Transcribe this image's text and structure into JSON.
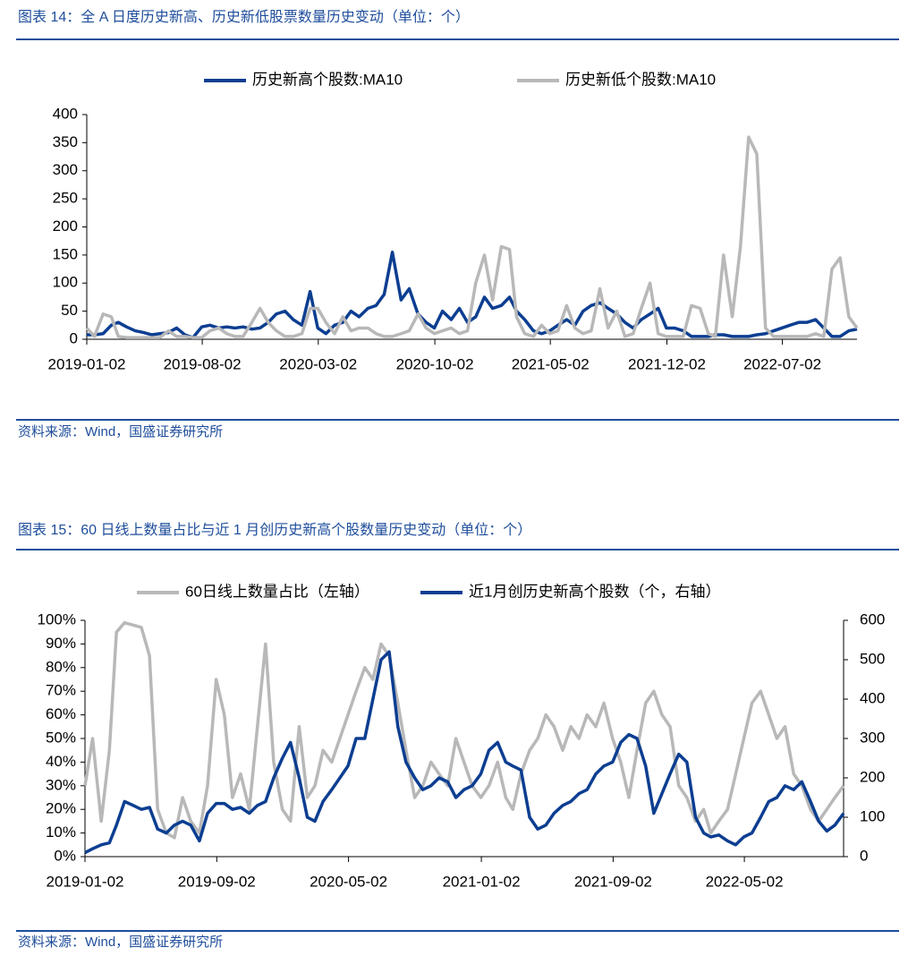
{
  "chart_data": [
    {
      "type": "line",
      "title": "图表 14：全 A 日度历史新高、历史新低股票数量历史变动（单位：个）",
      "source": "资料来源：Wind，国盛证券研究所",
      "x": [
        "2019-01-02",
        "2019-01-16",
        "2019-02-01",
        "2019-02-16",
        "2019-03-01",
        "2019-03-16",
        "2019-04-01",
        "2019-04-16",
        "2019-05-01",
        "2019-05-16",
        "2019-06-01",
        "2019-06-16",
        "2019-07-01",
        "2019-07-16",
        "2019-08-01",
        "2019-08-16",
        "2019-09-01",
        "2019-09-16",
        "2019-10-01",
        "2019-10-16",
        "2019-11-01",
        "2019-11-16",
        "2019-12-01",
        "2019-12-16",
        "2020-01-01",
        "2020-01-16",
        "2020-02-01",
        "2020-02-16",
        "2020-03-01",
        "2020-03-16",
        "2020-04-01",
        "2020-04-16",
        "2020-05-01",
        "2020-05-16",
        "2020-06-01",
        "2020-06-16",
        "2020-07-01",
        "2020-07-16",
        "2020-08-01",
        "2020-08-16",
        "2020-09-01",
        "2020-09-16",
        "2020-10-01",
        "2020-10-16",
        "2020-11-01",
        "2020-11-16",
        "2020-12-01",
        "2020-12-16",
        "2021-01-01",
        "2021-01-16",
        "2021-02-01",
        "2021-02-16",
        "2021-03-01",
        "2021-03-16",
        "2021-04-01",
        "2021-04-16",
        "2021-05-01",
        "2021-05-16",
        "2021-06-01",
        "2021-06-16",
        "2021-07-01",
        "2021-07-16",
        "2021-08-01",
        "2021-08-16",
        "2021-09-01",
        "2021-09-16",
        "2021-10-01",
        "2021-10-16",
        "2021-11-01",
        "2021-11-16",
        "2021-12-01",
        "2021-12-16",
        "2022-01-01",
        "2022-01-16",
        "2022-02-01",
        "2022-02-16",
        "2022-03-01",
        "2022-03-16",
        "2022-04-01",
        "2022-04-16",
        "2022-05-01",
        "2022-05-16",
        "2022-06-01",
        "2022-06-16",
        "2022-07-01",
        "2022-07-16",
        "2022-08-01",
        "2022-08-16",
        "2022-09-01",
        "2022-09-16",
        "2022-10-01",
        "2022-10-16",
        "2022-11-01",
        "2022-11-16"
      ],
      "xlim": [
        "2019-01-02",
        "2022-11-16"
      ],
      "xticks": [
        "2019-01-02",
        "2019-08-02",
        "2020-03-02",
        "2020-10-02",
        "2021-05-02",
        "2021-12-02",
        "2022-07-02"
      ],
      "ylim": [
        0,
        400
      ],
      "yticks": [
        0,
        50,
        100,
        150,
        200,
        250,
        300,
        350,
        400
      ],
      "legend": "top",
      "series": [
        {
          "name": "历史新高个股数:MA10",
          "color": "#0c3e91",
          "values": [
            8,
            8,
            10,
            25,
            30,
            22,
            15,
            12,
            8,
            10,
            12,
            20,
            8,
            3,
            22,
            25,
            20,
            22,
            20,
            22,
            18,
            20,
            30,
            45,
            50,
            35,
            25,
            85,
            20,
            10,
            25,
            30,
            50,
            40,
            55,
            60,
            80,
            155,
            70,
            90,
            45,
            30,
            20,
            50,
            35,
            55,
            30,
            40,
            75,
            55,
            60,
            75,
            50,
            35,
            15,
            10,
            15,
            25,
            35,
            25,
            50,
            60,
            65,
            55,
            45,
            30,
            20,
            35,
            45,
            55,
            20,
            20,
            15,
            5,
            5,
            5,
            8,
            8,
            5,
            5,
            5,
            8,
            10,
            15,
            20,
            25,
            30,
            30,
            35,
            20,
            5,
            5,
            15,
            18
          ]
        },
        {
          "name": "历史新低个股数:MA10",
          "color": "#b8b8b8",
          "values": [
            20,
            5,
            45,
            40,
            5,
            3,
            3,
            3,
            3,
            3,
            15,
            5,
            5,
            3,
            3,
            15,
            20,
            10,
            5,
            5,
            30,
            55,
            30,
            15,
            5,
            5,
            10,
            55,
            55,
            30,
            10,
            40,
            15,
            20,
            20,
            10,
            5,
            5,
            10,
            15,
            45,
            20,
            10,
            15,
            20,
            10,
            15,
            100,
            150,
            70,
            165,
            160,
            40,
            10,
            5,
            25,
            10,
            15,
            60,
            20,
            10,
            15,
            90,
            20,
            50,
            5,
            10,
            55,
            100,
            10,
            5,
            5,
            5,
            60,
            55,
            10,
            5,
            150,
            40,
            165,
            360,
            330,
            20,
            5,
            5,
            5,
            5,
            5,
            10,
            5,
            125,
            145,
            40,
            20
          ]
        }
      ]
    },
    {
      "type": "line",
      "title": "图表 15：60 日线上数量占比与近 1 月创历史新高个股数量历史变动（单位：个）",
      "source": "资料来源：Wind，国盛证券研究所",
      "x": [
        "2019-01-02",
        "2019-01-16",
        "2019-02-01",
        "2019-02-16",
        "2019-03-01",
        "2019-03-16",
        "2019-04-01",
        "2019-04-16",
        "2019-05-01",
        "2019-05-16",
        "2019-06-01",
        "2019-06-16",
        "2019-07-01",
        "2019-07-16",
        "2019-08-01",
        "2019-08-16",
        "2019-09-01",
        "2019-09-16",
        "2019-10-01",
        "2019-10-16",
        "2019-11-01",
        "2019-11-16",
        "2019-12-01",
        "2019-12-16",
        "2020-01-01",
        "2020-01-16",
        "2020-02-01",
        "2020-02-16",
        "2020-03-01",
        "2020-03-16",
        "2020-04-01",
        "2020-04-16",
        "2020-05-01",
        "2020-05-16",
        "2020-06-01",
        "2020-06-16",
        "2020-07-01",
        "2020-07-16",
        "2020-08-01",
        "2020-08-16",
        "2020-09-01",
        "2020-09-16",
        "2020-10-01",
        "2020-10-16",
        "2020-11-01",
        "2020-11-16",
        "2020-12-01",
        "2020-12-16",
        "2021-01-01",
        "2021-01-16",
        "2021-02-01",
        "2021-02-16",
        "2021-03-01",
        "2021-03-16",
        "2021-04-01",
        "2021-04-16",
        "2021-05-01",
        "2021-05-16",
        "2021-06-01",
        "2021-06-16",
        "2021-07-01",
        "2021-07-16",
        "2021-08-01",
        "2021-08-16",
        "2021-09-01",
        "2021-09-16",
        "2021-10-01",
        "2021-10-16",
        "2021-11-01",
        "2021-11-16",
        "2021-12-01",
        "2021-12-16",
        "2022-01-01",
        "2022-01-16",
        "2022-02-01",
        "2022-02-16",
        "2022-03-01",
        "2022-03-16",
        "2022-04-01",
        "2022-04-16",
        "2022-05-01",
        "2022-05-16",
        "2022-06-01",
        "2022-06-16",
        "2022-07-01",
        "2022-07-16",
        "2022-08-01",
        "2022-08-16",
        "2022-09-01",
        "2022-09-16",
        "2022-10-01",
        "2022-10-16",
        "2022-11-01"
      ],
      "xlim": [
        "2019-01-02",
        "2022-11-01"
      ],
      "xticks": [
        "2019-01-02",
        "2019-09-02",
        "2020-05-02",
        "2021-01-02",
        "2021-09-02",
        "2022-05-02"
      ],
      "ylim": [
        0,
        100
      ],
      "yticks": [
        {
          "value": 0,
          "label": "0%"
        },
        {
          "value": 10,
          "label": "10%"
        },
        {
          "value": 20,
          "label": "20%"
        },
        {
          "value": 30,
          "label": "30%"
        },
        {
          "value": 40,
          "label": "40%"
        },
        {
          "value": 50,
          "label": "50%"
        },
        {
          "value": 60,
          "label": "60%"
        },
        {
          "value": 70,
          "label": "70%"
        },
        {
          "value": 80,
          "label": "80%"
        },
        {
          "value": 90,
          "label": "90%"
        },
        {
          "value": 100,
          "label": "100%"
        }
      ],
      "y2lim": [
        0,
        600
      ],
      "y2ticks": [
        0,
        100,
        200,
        300,
        400,
        500,
        600
      ],
      "legend": "top",
      "series": [
        {
          "name": "60日线上数量占比（左轴）",
          "color": "#b8b8b8",
          "values": [
            30,
            50,
            15,
            45,
            95,
            99,
            98,
            97,
            85,
            20,
            10,
            8,
            25,
            15,
            10,
            30,
            75,
            60,
            25,
            35,
            20,
            55,
            90,
            40,
            20,
            15,
            55,
            25,
            30,
            45,
            40,
            50,
            60,
            70,
            80,
            75,
            90,
            85,
            65,
            45,
            25,
            30,
            40,
            35,
            30,
            50,
            40,
            30,
            25,
            30,
            40,
            25,
            20,
            35,
            45,
            50,
            60,
            55,
            45,
            55,
            50,
            60,
            55,
            65,
            50,
            40,
            25,
            45,
            65,
            70,
            60,
            55,
            30,
            25,
            15,
            20,
            10,
            15,
            20,
            35,
            50,
            65,
            70,
            60,
            50,
            55,
            35,
            30,
            20,
            15,
            20,
            25,
            30
          ]
        },
        {
          "name": "近1月创历史新高个股数（个，右轴）",
          "color": "#0c3e91",
          "axis": "y2",
          "values": [
            10,
            20,
            30,
            35,
            80,
            140,
            130,
            120,
            125,
            70,
            60,
            80,
            90,
            80,
            40,
            110,
            135,
            135,
            120,
            125,
            110,
            130,
            140,
            200,
            250,
            290,
            200,
            100,
            90,
            140,
            170,
            200,
            230,
            300,
            300,
            400,
            500,
            520,
            330,
            240,
            200,
            170,
            180,
            200,
            190,
            150,
            170,
            180,
            210,
            270,
            290,
            240,
            230,
            220,
            100,
            70,
            80,
            110,
            130,
            140,
            160,
            170,
            210,
            230,
            240,
            290,
            310,
            300,
            230,
            110,
            160,
            210,
            260,
            240,
            100,
            60,
            50,
            55,
            40,
            30,
            50,
            60,
            100,
            140,
            150,
            180,
            170,
            190,
            140,
            90,
            65,
            80,
            110
          ]
        }
      ]
    }
  ]
}
